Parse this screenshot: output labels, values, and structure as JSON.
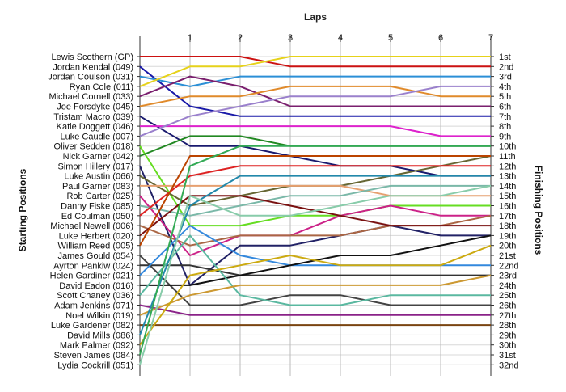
{
  "chart_data": {
    "type": "line",
    "title": "Laps",
    "ylabel_left": "Starting Positions",
    "ylabel_right": "Finishing Positions",
    "laps": [
      1,
      2,
      3,
      4,
      5,
      6,
      7
    ],
    "drivers": [
      "Lewis Scothern (GP)",
      "Jordan Kendal (049)",
      "Jordan Coulson (031)",
      "Ryan Cole (011)",
      "Michael Cornell (033)",
      "Joe Forsdyke (045)",
      "Tristam Macro (039)",
      "Katie Doggett (046)",
      "Luke Caudle (007)",
      "Oliver Sedden (018)",
      "Nick Garner (042)",
      "Simon Hillery (017)",
      "Luke Austin (066)",
      "Paul Garner (083)",
      "Rob Carter (025)",
      "Danny Fiske (085)",
      "Ed Coulman (050)",
      "Michael Newell (006)",
      "Luke Herbert (020)",
      "William Reed (005)",
      "James Gould (054)",
      "Ayrton Pankiw (024)",
      "Helen Gardiner (021)",
      "David Eadon (016)",
      "Scott Chaney (036)",
      "Adam Jenkins (071)",
      "Noel Wilkin (019)",
      "Luke Gardener (082)",
      "David Mills (086)",
      "Mark Palmer (092)",
      "Steven James (084)",
      "Lydia Cockrill (051)"
    ],
    "finishing_labels": [
      "1st",
      "2nd",
      "3rd",
      "4th",
      "5th",
      "6th",
      "7th",
      "8th",
      "9th",
      "10th",
      "11th",
      "12th",
      "13th",
      "14th",
      "15th",
      "16th",
      "17th",
      "18th",
      "19th",
      "20th",
      "21st",
      "22nd",
      "23rd",
      "24th",
      "25th",
      "26th",
      "27th",
      "28th",
      "29th",
      "30th",
      "31st",
      "32nd"
    ],
    "series": [
      {
        "color": "#cc1111",
        "positions": [
          1,
          1,
          2,
          2,
          2,
          2,
          2
        ]
      },
      {
        "color": "#1a1aa8",
        "positions": [
          6,
          7,
          7,
          7,
          7,
          7,
          7
        ]
      },
      {
        "color": "#2b8fd6",
        "positions": [
          4,
          3,
          3,
          3,
          3,
          3,
          3
        ]
      },
      {
        "color": "#e6d21a",
        "positions": [
          2,
          2,
          1,
          1,
          1,
          1,
          1
        ]
      },
      {
        "color": "#7a1f6e",
        "positions": [
          3,
          4,
          6,
          6,
          6,
          6,
          6
        ]
      },
      {
        "color": "#e08a2a",
        "positions": [
          5,
          5,
          4,
          4,
          4,
          5,
          5
        ]
      },
      {
        "color": "#1a1a6e",
        "positions": [
          10,
          10,
          11,
          12,
          12,
          13,
          13
        ]
      },
      {
        "color": "#dd22cc",
        "positions": [
          8,
          8,
          8,
          8,
          8,
          9,
          9
        ]
      },
      {
        "color": "#9a80cc",
        "positions": [
          7,
          6,
          5,
          5,
          5,
          4,
          4
        ]
      },
      {
        "color": "#66dd22",
        "positions": [
          18,
          18,
          17,
          17,
          16,
          16,
          16
        ]
      },
      {
        "color": "#228822",
        "positions": [
          9,
          9,
          10,
          10,
          10,
          10,
          10
        ]
      },
      {
        "color": "#222266",
        "positions": [
          24,
          20,
          20,
          19,
          18,
          19,
          19
        ]
      },
      {
        "color": "#666633",
        "positions": [
          16,
          15,
          14,
          14,
          13,
          12,
          11
        ]
      },
      {
        "color": "#e6a070",
        "positions": [
          14,
          14,
          14,
          14,
          15,
          15,
          15
        ]
      },
      {
        "color": "#cc2288",
        "positions": [
          21,
          19,
          19,
          17,
          16,
          17,
          17
        ]
      },
      {
        "color": "#7ab8a8",
        "positions": [
          17,
          16,
          15,
          15,
          14,
          14,
          14
        ]
      },
      {
        "color": "#dd2222",
        "positions": [
          13,
          12,
          12,
          12,
          12,
          12,
          12
        ]
      },
      {
        "color": "#aa6644",
        "positions": [
          20,
          19,
          19,
          19,
          18,
          18,
          17
        ]
      },
      {
        "color": "#7a1111",
        "positions": [
          15,
          15,
          16,
          17,
          18,
          18,
          18
        ]
      },
      {
        "color": "#bb4400",
        "positions": [
          11,
          11,
          11,
          11,
          11,
          11,
          11
        ]
      },
      {
        "color": "#444444",
        "positions": [
          26,
          26,
          25,
          25,
          26,
          26,
          26
        ]
      },
      {
        "color": "#333333",
        "positions": [
          22,
          23,
          23,
          23,
          23,
          23,
          23
        ]
      },
      {
        "color": "#3388dd",
        "positions": [
          18,
          21,
          22,
          22,
          22,
          22,
          22
        ]
      },
      {
        "color": "#111111",
        "positions": [
          24,
          23,
          22,
          21,
          21,
          20,
          19
        ]
      },
      {
        "color": "#5ab8a0",
        "positions": [
          19,
          25,
          26,
          26,
          25,
          25,
          25
        ]
      },
      {
        "color": "#8a2288",
        "positions": [
          27,
          27,
          27,
          27,
          27,
          27,
          27
        ]
      },
      {
        "color": "#cc9933",
        "positions": [
          25,
          24,
          24,
          24,
          24,
          24,
          23
        ]
      },
      {
        "color": "#7a4411",
        "positions": [
          28,
          28,
          28,
          28,
          28,
          28,
          28
        ]
      },
      {
        "color": "#2288aa",
        "positions": [
          16,
          13,
          13,
          13,
          13,
          13,
          13
        ]
      },
      {
        "color": "#ccaa11",
        "positions": [
          23,
          22,
          21,
          22,
          22,
          22,
          20
        ]
      },
      {
        "color": "#33aa55",
        "positions": [
          12,
          10,
          10,
          10,
          10,
          10,
          10
        ]
      },
      {
        "color": "#88ccaa",
        "positions": [
          15,
          17,
          17,
          16,
          15,
          15,
          14
        ]
      }
    ]
  }
}
